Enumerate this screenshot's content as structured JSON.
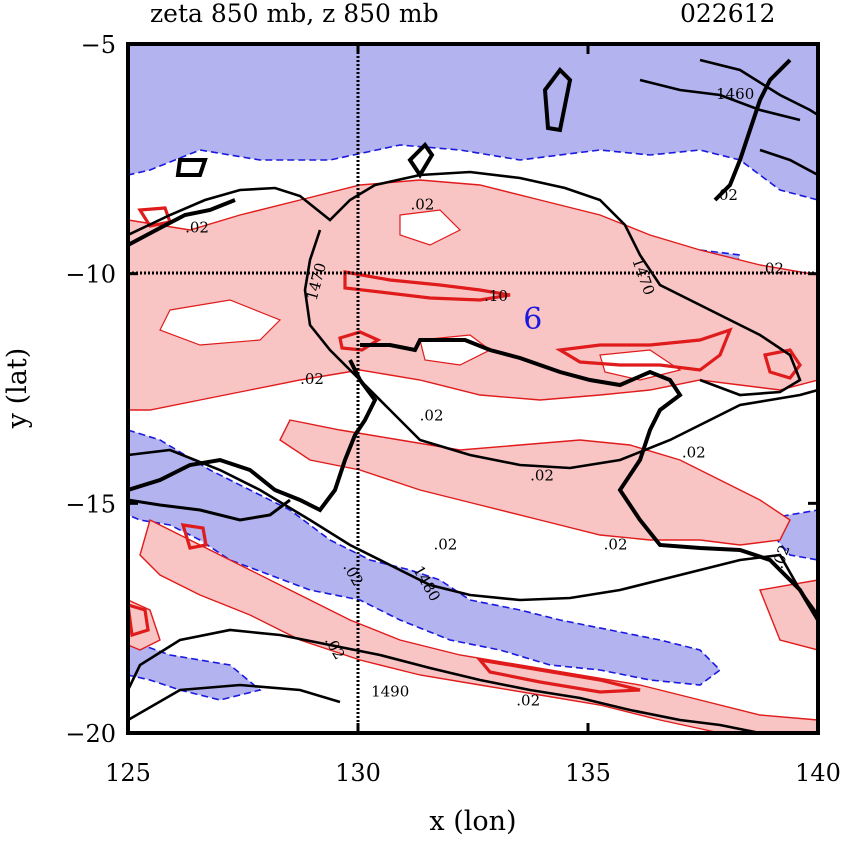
{
  "chart_data": {
    "type": "contour",
    "title": "zeta 850 mb, z 850 mb",
    "timestamp": "022612",
    "xlabel": "x (lon)",
    "ylabel": "y (lat)",
    "xlim": [
      125,
      140
    ],
    "ylim": [
      -20,
      -5
    ],
    "xticks": [
      {
        "value": 125,
        "label": "125"
      },
      {
        "value": 130,
        "label": "130"
      },
      {
        "value": 135,
        "label": "135"
      },
      {
        "value": 140,
        "label": "140"
      }
    ],
    "yticks": [
      {
        "value": -5,
        "label": "−5"
      },
      {
        "value": -10,
        "label": "−10"
      },
      {
        "value": -15,
        "label": "−15"
      },
      {
        "value": -20,
        "label": "−20"
      }
    ],
    "reference_lines": {
      "lon": 130,
      "lat": -10
    },
    "colors": {
      "positive_fill": "#f8c4c4",
      "negative_fill": "#b3b3f0",
      "positive_line": "#e01b1b",
      "negative_line": "#1a1adf",
      "height_line": "#000000"
    },
    "contour_labels": [
      {
        "text": ".02",
        "x": 126.5,
        "y": -9.1
      },
      {
        "text": ".02",
        "x": 131.4,
        "y": -8.6
      },
      {
        "text": ".10",
        "x": 133.0,
        "y": -10.6
      },
      {
        "text": "1470",
        "x": 129.2,
        "y": -10.2,
        "angle": -75
      },
      {
        "text": "1470",
        "x": 136.1,
        "y": -10.1,
        "angle": 70
      },
      {
        "text": ".02",
        "x": 139.0,
        "y": -10.0
      },
      {
        "text": ".02",
        "x": 129.0,
        "y": -12.4
      },
      {
        "text": ".02",
        "x": 131.6,
        "y": -13.2
      },
      {
        "text": ".02",
        "x": 137.3,
        "y": -14.0
      },
      {
        "text": ".02",
        "x": 134.0,
        "y": -14.5
      },
      {
        "text": ".02",
        "x": 135.6,
        "y": -16.0
      },
      {
        "text": ".02",
        "x": 131.9,
        "y": -16.0
      },
      {
        "text": "1480",
        "x": 131.4,
        "y": -16.8,
        "angle": 60
      },
      {
        "text": ".02",
        "x": 129.8,
        "y": -16.6,
        "angle": 60
      },
      {
        "text": ".02",
        "x": 129.4,
        "y": -18.2,
        "angle": 60
      },
      {
        "text": "1490",
        "x": 130.7,
        "y": -19.2
      },
      {
        "text": ".02",
        "x": 133.7,
        "y": -19.4
      },
      {
        "text": ".02",
        "x": 139.3,
        "y": -16.2,
        "angle": -70
      },
      {
        "text": ".02",
        "x": 138.0,
        "y": -8.4
      },
      {
        "text": "1460",
        "x": 138.2,
        "y": -6.2
      }
    ],
    "markers": [
      {
        "text": "6",
        "x": 133.8,
        "y": -11.2
      }
    ]
  }
}
